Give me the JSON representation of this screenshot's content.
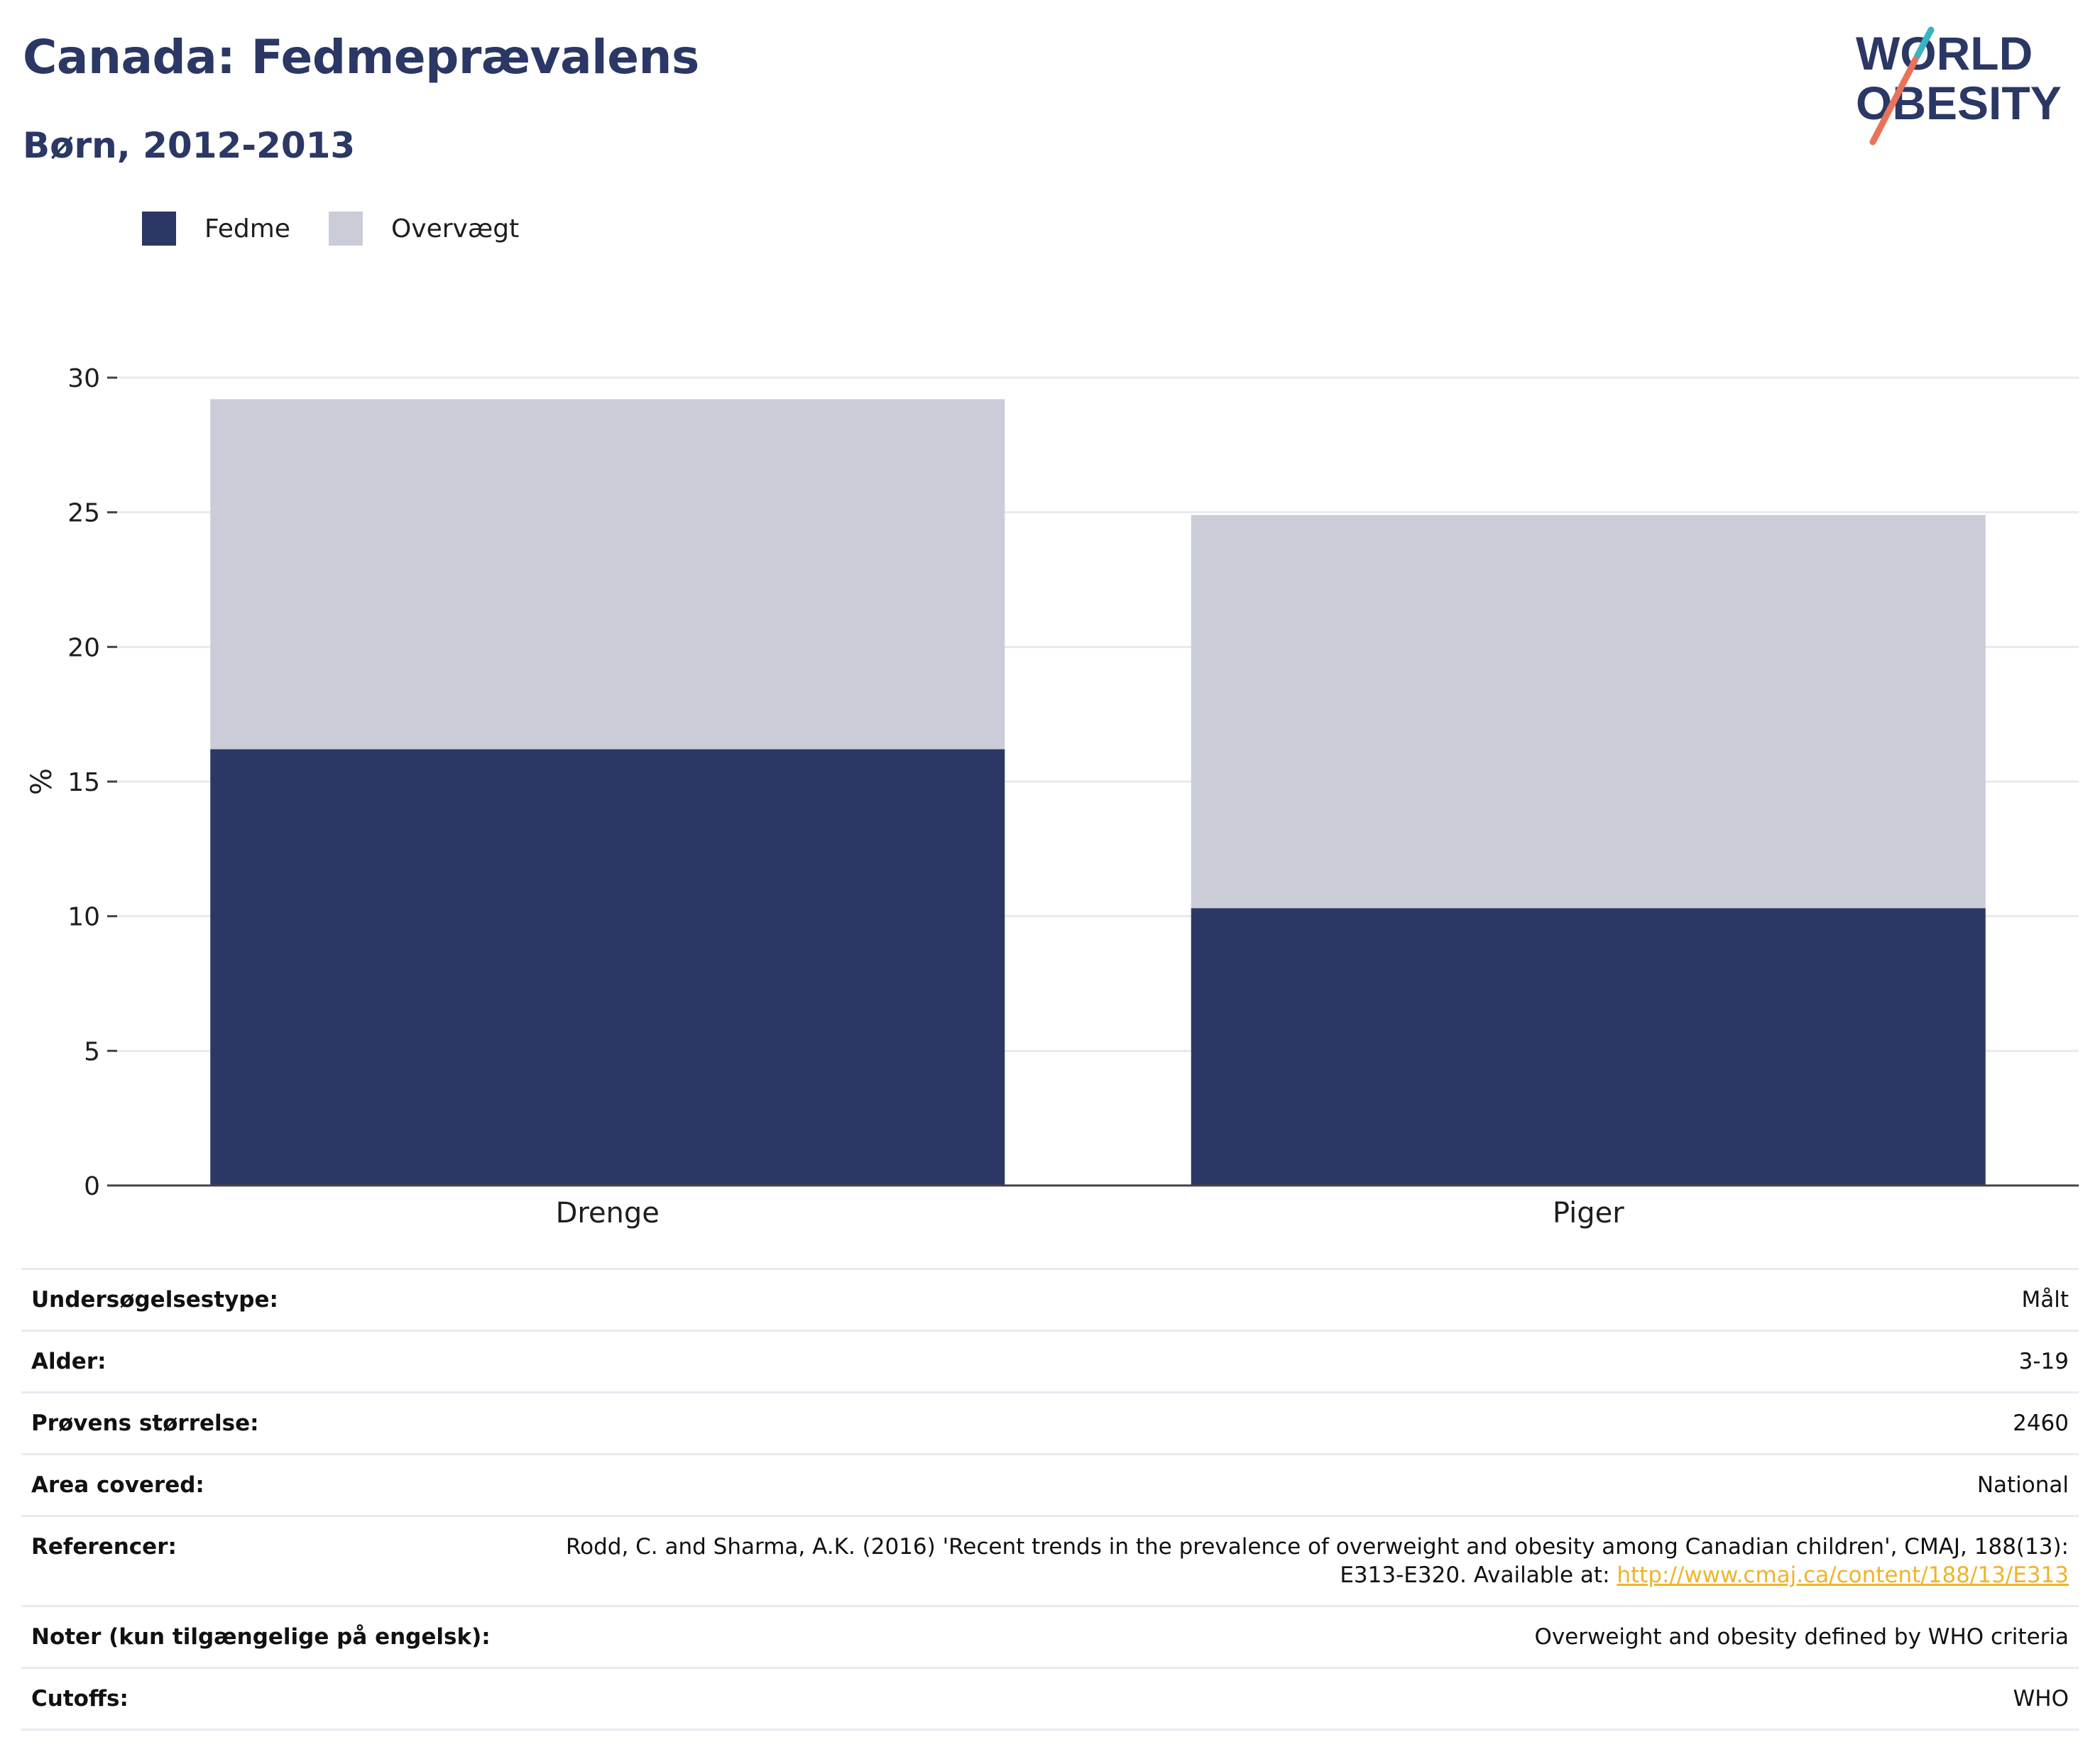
{
  "header": {
    "title": "Canada: Fedmeprævalens",
    "subtitle": "Børn, 2012-2013"
  },
  "logo": {
    "line1": "WORLD",
    "line2": "OBESITY",
    "colors": {
      "text": "#2b3764",
      "slash_top": "#3bb4c1",
      "slash_bottom": "#e8735a"
    }
  },
  "legend": [
    {
      "label": "Fedme",
      "color": "#2b3764"
    },
    {
      "label": "Overvægt",
      "color": "#cacdd8"
    }
  ],
  "chart_data": {
    "type": "bar",
    "stacked": true,
    "categories": [
      "Drenge",
      "Piger"
    ],
    "series": [
      {
        "name": "Fedme",
        "color": "#2b3764",
        "values": [
          16.2,
          10.3
        ]
      },
      {
        "name": "Overvægt",
        "color": "#cacdd8",
        "values": [
          13.0,
          14.6
        ]
      }
    ],
    "ylabel": "%",
    "ylim": [
      0,
      30
    ],
    "yticks": [
      0,
      5,
      10,
      15,
      20,
      25,
      30
    ],
    "grid": true,
    "legend_position": "top-left"
  },
  "info": {
    "rows": [
      {
        "label": "Undersøgelsestype:",
        "value": "Målt"
      },
      {
        "label": "Alder:",
        "value": "3-19"
      },
      {
        "label": "Prøvens størrelse:",
        "value": "2460"
      },
      {
        "label": "Area covered:",
        "value": "National"
      },
      {
        "label": "Referencer:",
        "value": "Rodd, C. and Sharma, A.K. (2016) 'Recent trends in the prevalence of overweight and obesity among Canadian children', CMAJ, 188(13): E313-E320. Available at: ",
        "link": "http://www.cmaj.ca/content/188/13/E313"
      },
      {
        "label": "Noter (kun tilgængelige på engelsk):",
        "value": "Overweight and obesity defined by WHO criteria"
      },
      {
        "label": "Cutoffs:",
        "value": "WHO"
      }
    ]
  }
}
